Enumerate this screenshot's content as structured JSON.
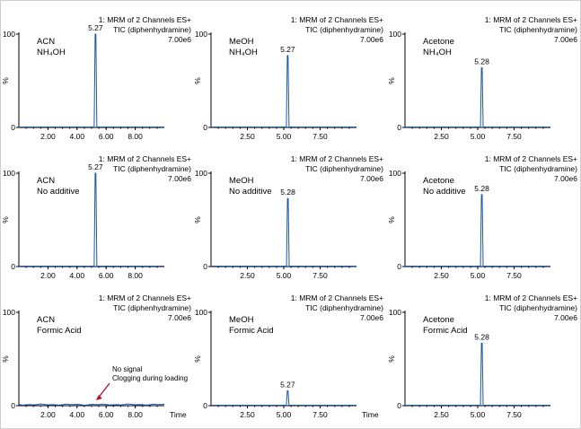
{
  "header": {
    "line1": "1: MRM of 2 Channels ES+",
    "line2": "TIC (diphenhydramine)",
    "line3": "7.00e6"
  },
  "axis_labels": {
    "y_max": "100",
    "y_min": "0",
    "y_unit": "%",
    "x_unit": "Time"
  },
  "annotation": {
    "line1": "No signal",
    "line2": "Clogging during loading"
  },
  "chart_data": [
    {
      "type": "line",
      "row": 0,
      "col": 0,
      "solvent": "ACN",
      "additive": "NH₄OH",
      "peak_x": 5.27,
      "peak_label": "5.27",
      "peak_height": 100,
      "xlim": [
        0,
        10
      ],
      "xticks": [
        2,
        4,
        6,
        8
      ],
      "xtick_labels": [
        "2.00",
        "4.00",
        "6.00",
        "8.00"
      ],
      "ylim": [
        0,
        100
      ],
      "show_time_label": false
    },
    {
      "type": "line",
      "row": 0,
      "col": 1,
      "solvent": "MeOH",
      "additive": "NH₄OH",
      "peak_x": 5.27,
      "peak_label": "5.27",
      "peak_height": 77,
      "xlim": [
        0,
        10
      ],
      "xticks": [
        2.5,
        5,
        7.5
      ],
      "xtick_labels": [
        "2.50",
        "5.00",
        "7.50"
      ],
      "ylim": [
        0,
        100
      ],
      "show_time_label": false
    },
    {
      "type": "line",
      "row": 0,
      "col": 2,
      "solvent": "Acetone",
      "additive": "NH₄OH",
      "peak_x": 5.28,
      "peak_label": "5.28",
      "peak_height": 64,
      "xlim": [
        0,
        10
      ],
      "xticks": [
        2.5,
        5,
        7.5
      ],
      "xtick_labels": [
        "2.50",
        "5.00",
        "7.50"
      ],
      "ylim": [
        0,
        100
      ],
      "show_time_label": false
    },
    {
      "type": "line",
      "row": 1,
      "col": 0,
      "solvent": "ACN",
      "additive": "No additive",
      "peak_x": 5.27,
      "peak_label": "5.27",
      "peak_height": 100,
      "xlim": [
        0,
        10
      ],
      "xticks": [
        2,
        4,
        6,
        8
      ],
      "xtick_labels": [
        "2.00",
        "4.00",
        "6.00",
        "8.00"
      ],
      "ylim": [
        0,
        100
      ],
      "show_time_label": false
    },
    {
      "type": "line",
      "row": 1,
      "col": 1,
      "solvent": "MeOH",
      "additive": "No additive",
      "peak_x": 5.28,
      "peak_label": "5.28",
      "peak_height": 73,
      "xlim": [
        0,
        10
      ],
      "xticks": [
        2.5,
        5,
        7.5
      ],
      "xtick_labels": [
        "2.50",
        "5.00",
        "7.50"
      ],
      "ylim": [
        0,
        100
      ],
      "show_time_label": false
    },
    {
      "type": "line",
      "row": 1,
      "col": 2,
      "solvent": "Acetone",
      "additive": "No additive",
      "peak_x": 5.28,
      "peak_label": "5.28",
      "peak_height": 77,
      "xlim": [
        0,
        10
      ],
      "xticks": [
        2.5,
        5,
        7.5
      ],
      "xtick_labels": [
        "2.50",
        "5.00",
        "7.50"
      ],
      "ylim": [
        0,
        100
      ],
      "show_time_label": false
    },
    {
      "type": "line",
      "row": 2,
      "col": 0,
      "solvent": "ACN",
      "additive": "Formic Acid",
      "peak_x": null,
      "peak_label": "",
      "peak_height": 0,
      "xlim": [
        0,
        10
      ],
      "xticks": [
        2,
        4,
        6,
        8
      ],
      "xtick_labels": [
        "2.00",
        "4.00",
        "6.00",
        "8.00"
      ],
      "ylim": [
        0,
        100
      ],
      "show_time_label": true,
      "no_signal": true
    },
    {
      "type": "line",
      "row": 2,
      "col": 1,
      "solvent": "MeOH",
      "additive": "Formic Acid",
      "peak_x": 5.27,
      "peak_label": "5.27",
      "peak_height": 16,
      "xlim": [
        0,
        10
      ],
      "xticks": [
        2.5,
        5,
        7.5
      ],
      "xtick_labels": [
        "2.50",
        "5.00",
        "7.50"
      ],
      "ylim": [
        0,
        100
      ],
      "show_time_label": true
    },
    {
      "type": "line",
      "row": 2,
      "col": 2,
      "solvent": "Acetone",
      "additive": "Formic Acid",
      "peak_x": 5.28,
      "peak_label": "5.28",
      "peak_height": 67,
      "xlim": [
        0,
        10
      ],
      "xticks": [
        2.5,
        5,
        7.5
      ],
      "xtick_labels": [
        "2.50",
        "5.00",
        "7.50"
      ],
      "ylim": [
        0,
        100
      ],
      "show_time_label": false
    }
  ]
}
